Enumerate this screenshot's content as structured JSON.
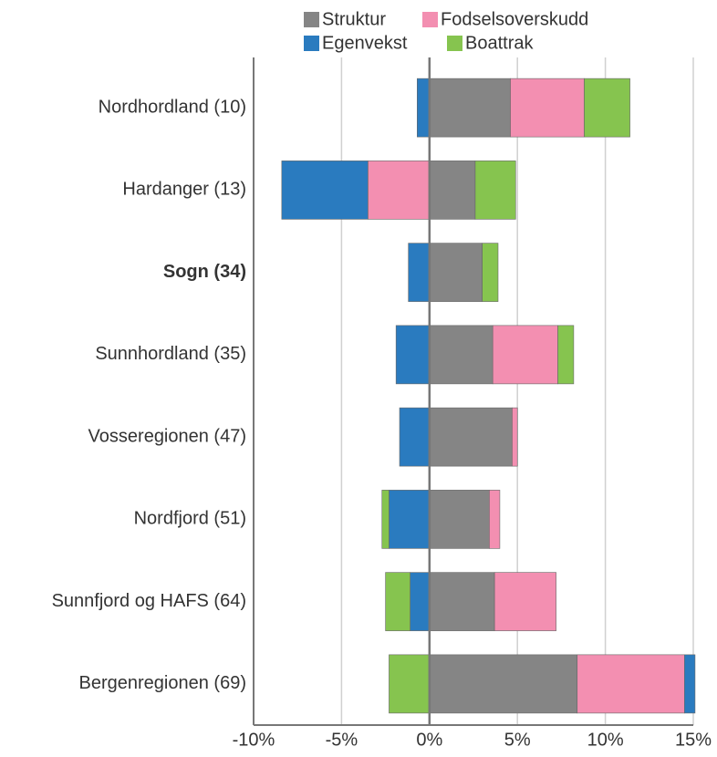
{
  "chart_data": {
    "type": "diverging_stacked_bar",
    "categories": [
      "Nordhordland (10)",
      "Hardanger (13)",
      "Sogn (34)",
      "Sunnhordland (35)",
      "Vosseregionen (47)",
      "Nordfjord (51)",
      "Sunnfjord og HAFS (64)",
      "Bergenregionen (69)"
    ],
    "highlight": 2,
    "series": [
      {
        "name": "Struktur",
        "color": "#858585",
        "values": [
          4.6,
          2.6,
          3.0,
          3.6,
          4.7,
          3.4,
          3.7,
          8.4
        ]
      },
      {
        "name": "Fodselsoverskudd",
        "color": "#f38fb1",
        "values": [
          4.2,
          -3.5,
          0,
          3.7,
          0.3,
          0.6,
          3.5,
          6.1
        ]
      },
      {
        "name": "Egenvekst",
        "color": "#2a7bbf",
        "values": [
          -0.7,
          -4.9,
          -1.2,
          -1.9,
          -1.7,
          -2.3,
          -1.1,
          0.6
        ]
      },
      {
        "name": "Boattrak",
        "color": "#86c44f",
        "values": [
          2.6,
          2.3,
          0.9,
          0.9,
          0,
          -0.4,
          -1.4,
          -2.3
        ]
      }
    ],
    "xlim": [
      -10,
      15
    ],
    "xticks": [
      {
        "value": -10,
        "label": "-10%"
      },
      {
        "value": -5,
        "label": "-5%"
      },
      {
        "value": 0,
        "label": "0%"
      },
      {
        "value": 5,
        "label": "5%"
      },
      {
        "value": 10,
        "label": "10%"
      },
      {
        "value": 15,
        "label": "15%"
      }
    ],
    "grid": true
  }
}
